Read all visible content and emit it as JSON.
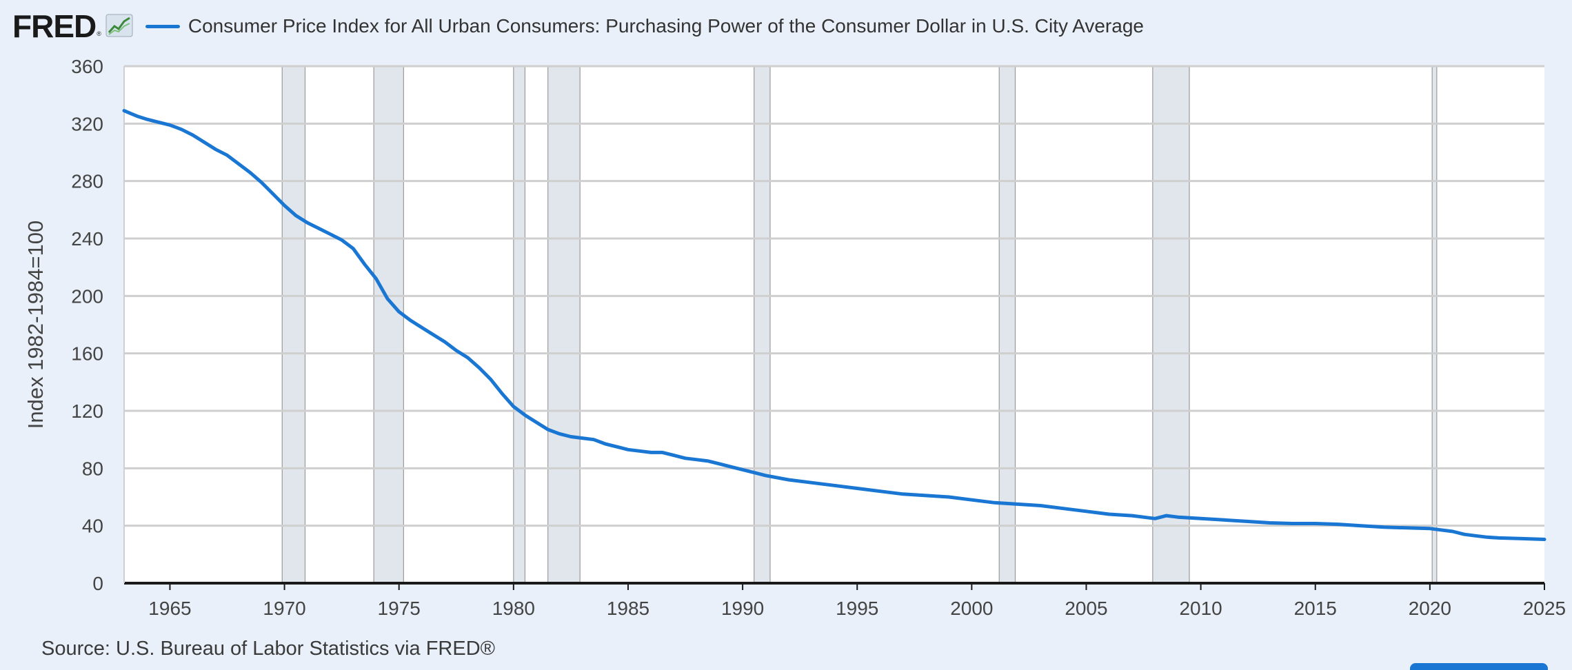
{
  "header": {
    "logo_text": "FRED",
    "logo_mark": "®",
    "logo_icon": "line-chart-icon",
    "series_title": "Consumer Price Index for All Urban Consumers: Purchasing Power of the Consumer Dollar in U.S. City Average"
  },
  "source": "Source: U.S. Bureau of Labor Statistics via FRED®",
  "colors": {
    "line": "#1976d2",
    "recession": "#e1e6ec",
    "grid": "#cfcfcf",
    "background": "#e9f0f9",
    "plot": "#ffffff"
  },
  "chart_data": {
    "type": "line",
    "title": "",
    "xlabel": "",
    "ylabel": "Index 1982-1984=100",
    "xlim": [
      1963.0,
      2025.0
    ],
    "ylim": [
      0,
      360
    ],
    "grid": true,
    "x_ticks": [
      1965,
      1970,
      1975,
      1980,
      1985,
      1990,
      1995,
      2000,
      2005,
      2010,
      2015,
      2020,
      2025
    ],
    "y_ticks": [
      0,
      40,
      80,
      120,
      160,
      200,
      240,
      280,
      320,
      360
    ],
    "recessions": [
      [
        1969.9,
        1970.9
      ],
      [
        1973.9,
        1975.2
      ],
      [
        1980.0,
        1980.5
      ],
      [
        1981.5,
        1982.9
      ],
      [
        1990.5,
        1991.2
      ],
      [
        2001.2,
        2001.9
      ],
      [
        2007.9,
        2009.5
      ],
      [
        2020.1,
        2020.3
      ]
    ],
    "series": [
      {
        "name": "Consumer Price Index for All Urban Consumers: Purchasing Power of the Consumer Dollar in U.S. City Average",
        "x": [
          1963.0,
          1963.3,
          1963.6,
          1964.0,
          1964.5,
          1965.0,
          1965.5,
          1966.0,
          1966.5,
          1967.0,
          1967.5,
          1968.0,
          1968.5,
          1969.0,
          1969.5,
          1970.0,
          1970.5,
          1971.0,
          1971.5,
          1972.0,
          1972.5,
          1973.0,
          1973.5,
          1974.0,
          1974.5,
          1975.0,
          1975.5,
          1976.0,
          1976.5,
          1977.0,
          1977.5,
          1978.0,
          1978.5,
          1979.0,
          1979.5,
          1980.0,
          1980.5,
          1981.0,
          1981.5,
          1982.0,
          1982.5,
          1983.0,
          1983.5,
          1984.0,
          1984.5,
          1985.0,
          1985.5,
          1986.0,
          1986.5,
          1987.0,
          1987.5,
          1988.0,
          1988.5,
          1989.0,
          1989.5,
          1990.0,
          1990.5,
          1991.0,
          1992.0,
          1993.0,
          1994.0,
          1995.0,
          1996.0,
          1997.0,
          1998.0,
          1999.0,
          2000.0,
          2001.0,
          2002.0,
          2003.0,
          2004.0,
          2005.0,
          2006.0,
          2007.0,
          2008.0,
          2008.5,
          2009.0,
          2010.0,
          2011.0,
          2012.0,
          2013.0,
          2014.0,
          2015.0,
          2016.0,
          2017.0,
          2018.0,
          2019.0,
          2020.0,
          2021.0,
          2021.5,
          2022.0,
          2022.5,
          2023.0,
          2024.0,
          2025.0
        ],
        "y": [
          329,
          327,
          325,
          323,
          321,
          319,
          316,
          312,
          307,
          302,
          298,
          292,
          286,
          279,
          271,
          263,
          256,
          251,
          247,
          243,
          239,
          233,
          222,
          212,
          198,
          189,
          183,
          178,
          173,
          168,
          162,
          157,
          150,
          142,
          132,
          123,
          117,
          112,
          107,
          104,
          102,
          101,
          100,
          97,
          95,
          93,
          92,
          91,
          91,
          89,
          87,
          86,
          85,
          83,
          81,
          79,
          77,
          75,
          72,
          70,
          68,
          66,
          64,
          62,
          61,
          60,
          58,
          56,
          55,
          54,
          52,
          50,
          48,
          47,
          45,
          47,
          46,
          45,
          44,
          43,
          42,
          41.5,
          41.5,
          41,
          40,
          39,
          38.5,
          38,
          36,
          34,
          33,
          32,
          31.5,
          31,
          30.5
        ]
      }
    ]
  }
}
